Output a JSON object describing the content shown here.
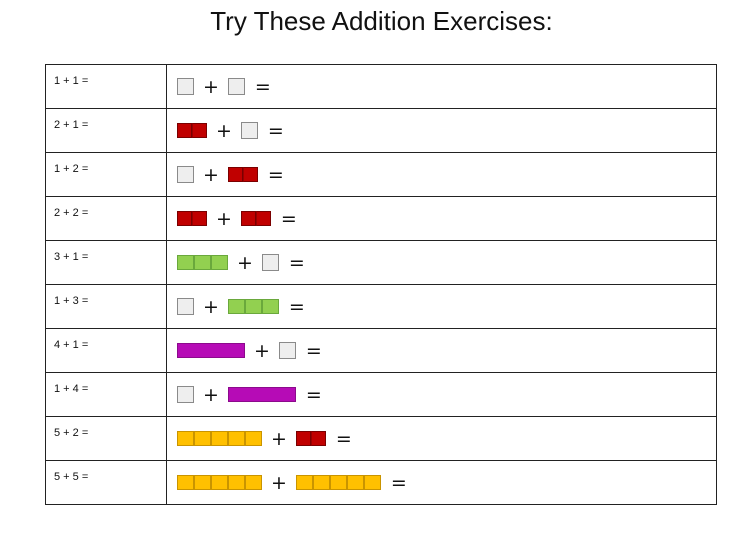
{
  "title": "Try These Addition Exercises:",
  "colors": {
    "white": "#eeeeee",
    "red": "#c00000",
    "green": "#92d050",
    "purple": "#b60bb6",
    "yellow": "#ffc000"
  },
  "plus_sign": "+",
  "equals_sign": "=",
  "exercises": [
    {
      "label": "1 + 1 =",
      "a": 1,
      "b": 1
    },
    {
      "label": "2 + 1 =",
      "a": 2,
      "b": 1
    },
    {
      "label": "1 + 2 =",
      "a": 1,
      "b": 2
    },
    {
      "label": "2 + 2 =",
      "a": 2,
      "b": 2
    },
    {
      "label": "3 + 1 =",
      "a": 3,
      "b": 1
    },
    {
      "label": "1 + 3 =",
      "a": 1,
      "b": 3
    },
    {
      "label": "4 + 1 =",
      "a": 4,
      "b": 1
    },
    {
      "label": "1 + 4 =",
      "a": 1,
      "b": 4
    },
    {
      "label": "5 + 2 =",
      "a": 5,
      "b": 2
    },
    {
      "label": "5 + 5 =",
      "a": 5,
      "b": 5
    }
  ]
}
